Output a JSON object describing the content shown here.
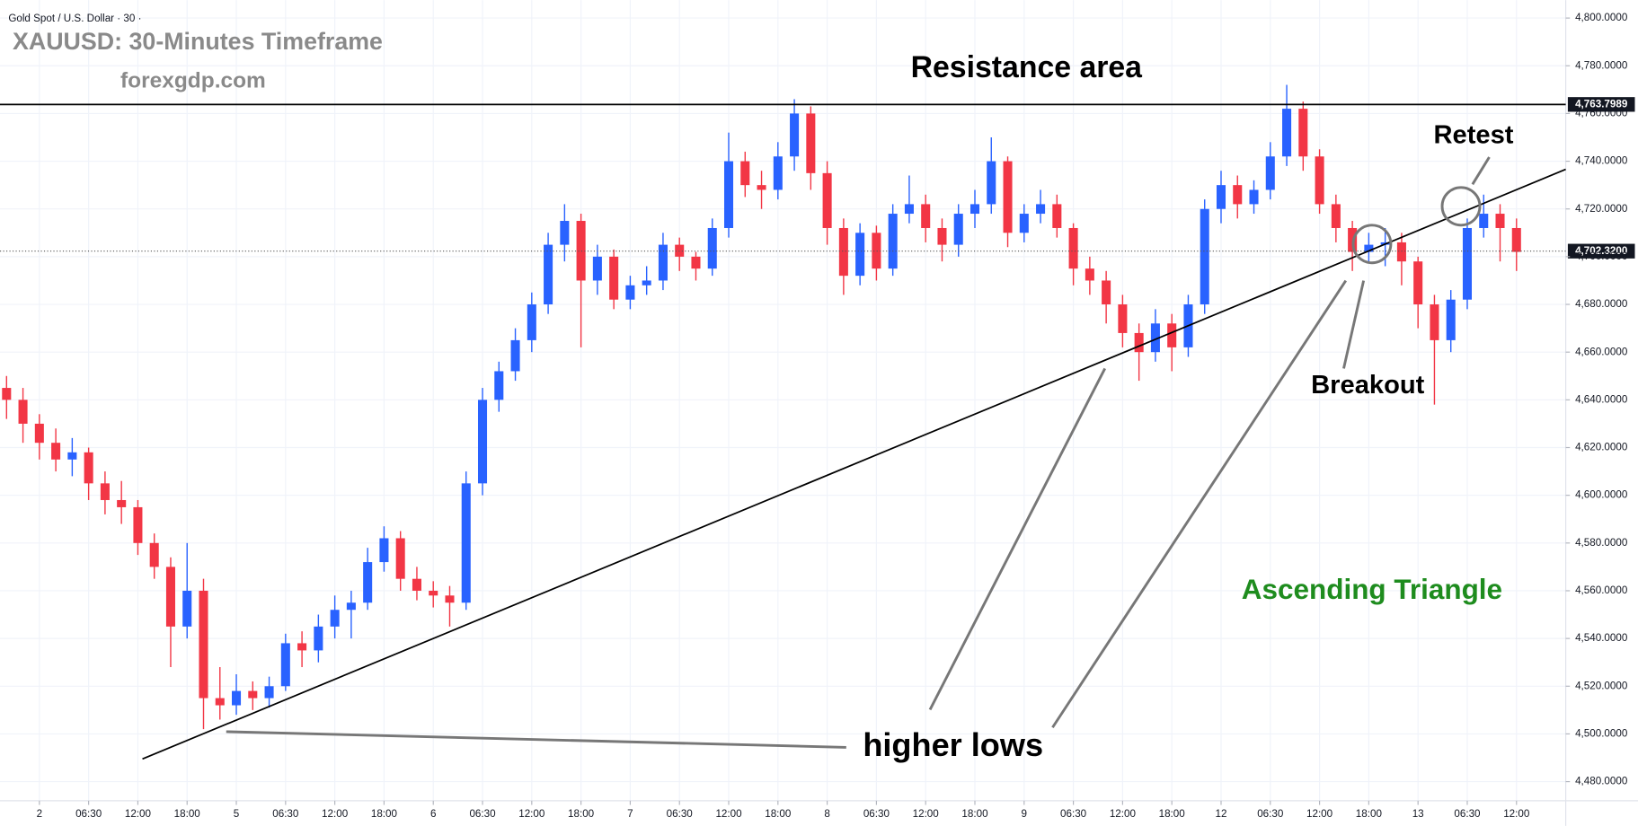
{
  "chart_data": {
    "type": "candlestick",
    "title": "Gold Spot / U.S. Dollar · 30 ·",
    "up_color": "#2962ff",
    "down_color": "#f23645",
    "grid": true,
    "open": [
      4645,
      4640,
      4630,
      4622,
      4615,
      4618,
      4605,
      4598,
      4595,
      4580,
      4570,
      4545,
      4560,
      4515,
      4512,
      4518,
      4515,
      4520,
      4538,
      4535,
      4545,
      4552,
      4555,
      4572,
      4582,
      4565,
      4560,
      4558,
      4555,
      4605,
      4640,
      4652,
      4665,
      4680,
      4705,
      4715,
      4690,
      4700,
      4682,
      4688,
      4690,
      4705,
      4700,
      4695,
      4712,
      4740,
      4730,
      4728,
      4742,
      4760,
      4735,
      4712,
      4692,
      4710,
      4695,
      4718,
      4722,
      4712,
      4705,
      4718,
      4722,
      4740,
      4710,
      4718,
      4722,
      4712,
      4695,
      4690,
      4680,
      4668,
      4660,
      4672,
      4662,
      4680,
      4720,
      4730,
      4722,
      4728,
      4742,
      4762,
      4742,
      4722,
      4712,
      4702,
      4705,
      4706,
      4698,
      4680,
      4665,
      4682,
      4712,
      4718,
      4712
    ],
    "high": [
      4650,
      4645,
      4634,
      4628,
      4624,
      4620,
      4610,
      4606,
      4598,
      4584,
      4574,
      4580,
      4565,
      4528,
      4525,
      4522,
      4524,
      4542,
      4543,
      4550,
      4558,
      4560,
      4578,
      4587,
      4585,
      4570,
      4564,
      4562,
      4610,
      4645,
      4656,
      4670,
      4685,
      4710,
      4722,
      4718,
      4705,
      4703,
      4692,
      4696,
      4710,
      4708,
      4702,
      4716,
      4752,
      4744,
      4736,
      4748,
      4766,
      4763,
      4740,
      4716,
      4714,
      4713,
      4722,
      4734,
      4726,
      4716,
      4722,
      4728,
      4750,
      4742,
      4722,
      4728,
      4726,
      4714,
      4700,
      4694,
      4684,
      4672,
      4678,
      4676,
      4684,
      4724,
      4736,
      4734,
      4732,
      4748,
      4772,
      4765,
      4745,
      4726,
      4715,
      4710,
      4712,
      4710,
      4700,
      4684,
      4686,
      4716,
      4726,
      4722,
      4716
    ],
    "low": [
      4632,
      4622,
      4615,
      4610,
      4608,
      4598,
      4592,
      4588,
      4575,
      4565,
      4528,
      4540,
      4502,
      4506,
      4508,
      4510,
      4511,
      4518,
      4528,
      4530,
      4540,
      4540,
      4552,
      4568,
      4560,
      4556,
      4553,
      4545,
      4552,
      4600,
      4635,
      4648,
      4660,
      4676,
      4698,
      4662,
      4684,
      4678,
      4678,
      4684,
      4686,
      4694,
      4690,
      4692,
      4708,
      4725,
      4720,
      4724,
      4736,
      4728,
      4705,
      4684,
      4688,
      4690,
      4692,
      4714,
      4706,
      4698,
      4700,
      4712,
      4718,
      4704,
      4706,
      4714,
      4708,
      4688,
      4684,
      4672,
      4662,
      4648,
      4656,
      4652,
      4658,
      4676,
      4714,
      4716,
      4718,
      4724,
      4738,
      4736,
      4718,
      4706,
      4694,
      4698,
      4696,
      4688,
      4670,
      4638,
      4660,
      4678,
      4708,
      4698,
      4694
    ],
    "close": [
      4640,
      4630,
      4622,
      4615,
      4618,
      4605,
      4598,
      4595,
      4580,
      4570,
      4545,
      4560,
      4515,
      4512,
      4518,
      4515,
      4520,
      4538,
      4535,
      4545,
      4552,
      4555,
      4572,
      4582,
      4565,
      4560,
      4558,
      4555,
      4605,
      4640,
      4652,
      4665,
      4680,
      4705,
      4715,
      4690,
      4700,
      4682,
      4688,
      4690,
      4705,
      4700,
      4695,
      4712,
      4740,
      4730,
      4728,
      4742,
      4760,
      4735,
      4712,
      4692,
      4710,
      4695,
      4718,
      4722,
      4712,
      4705,
      4718,
      4722,
      4740,
      4710,
      4718,
      4722,
      4712,
      4695,
      4690,
      4680,
      4668,
      4660,
      4672,
      4662,
      4680,
      4720,
      4730,
      4722,
      4728,
      4742,
      4762,
      4742,
      4722,
      4712,
      4702,
      4705,
      4706,
      4698,
      4680,
      4665,
      4682,
      4712,
      4718,
      4712,
      4702
    ],
    "xlim": [
      -0.4,
      95
    ],
    "xticks": [
      {
        "value": 2,
        "label": "2"
      },
      {
        "value": 5,
        "label": "06:30"
      },
      {
        "value": 8,
        "label": "12:00"
      },
      {
        "value": 11,
        "label": "18:00"
      },
      {
        "value": 14,
        "label": "5"
      },
      {
        "value": 17,
        "label": "06:30"
      },
      {
        "value": 20,
        "label": "12:00"
      },
      {
        "value": 23,
        "label": "18:00"
      },
      {
        "value": 26,
        "label": "6"
      },
      {
        "value": 29,
        "label": "06:30"
      },
      {
        "value": 32,
        "label": "12:00"
      },
      {
        "value": 35,
        "label": "18:00"
      },
      {
        "value": 38,
        "label": "7"
      },
      {
        "value": 41,
        "label": "06:30"
      },
      {
        "value": 44,
        "label": "12:00"
      },
      {
        "value": 47,
        "label": "18:00"
      },
      {
        "value": 50,
        "label": "8"
      },
      {
        "value": 53,
        "label": "06:30"
      },
      {
        "value": 56,
        "label": "12:00"
      },
      {
        "value": 59,
        "label": "18:00"
      },
      {
        "value": 62,
        "label": "9"
      },
      {
        "value": 65,
        "label": "06:30"
      },
      {
        "value": 68,
        "label": "12:00"
      },
      {
        "value": 71,
        "label": "18:00"
      },
      {
        "value": 74,
        "label": "12"
      },
      {
        "value": 77,
        "label": "06:30"
      },
      {
        "value": 80,
        "label": "12:00"
      },
      {
        "value": 83,
        "label": "18:00"
      },
      {
        "value": 86,
        "label": "13"
      },
      {
        "value": 89,
        "label": "06:30"
      },
      {
        "value": 92,
        "label": "12:00"
      }
    ],
    "ylim": [
      4472,
      4807.5
    ],
    "yticks": [
      {
        "value": 4480,
        "label": "4,480.0000"
      },
      {
        "value": 4500,
        "label": "4,500.0000"
      },
      {
        "value": 4520,
        "label": "4,520.0000"
      },
      {
        "value": 4540,
        "label": "4,540.0000"
      },
      {
        "value": 4560,
        "label": "4,560.0000"
      },
      {
        "value": 4580,
        "label": "4,580.0000"
      },
      {
        "value": 4600,
        "label": "4,600.0000"
      },
      {
        "value": 4620,
        "label": "4,620.0000"
      },
      {
        "value": 4640,
        "label": "4,640.0000"
      },
      {
        "value": 4660,
        "label": "4,660.0000"
      },
      {
        "value": 4680,
        "label": "4,680.0000"
      },
      {
        "value": 4700,
        "label": "4,700.0000"
      },
      {
        "value": 4720,
        "label": "4,720.0000"
      },
      {
        "value": 4740,
        "label": "4,740.0000"
      },
      {
        "value": 4760,
        "label": "4,760.0000"
      },
      {
        "value": 4780,
        "label": "4,780.0000"
      },
      {
        "value": 4800,
        "label": "4,800.0000"
      }
    ],
    "resistance": {
      "value": 4763.7989,
      "label": "4,763.7989"
    },
    "last_price": {
      "value": 4702.32,
      "label": "4,702.3200"
    },
    "trend_line": {
      "x": [
        8.28,
        95
      ],
      "y": [
        4489.5,
        4736.6
      ]
    },
    "annotations": {
      "heading": "XAUUSD: 30-Minutes Timeframe",
      "source": "forexgdp.com",
      "resistance_area": "Resistance area",
      "retest": "Retest",
      "breakout": "Breakout",
      "pattern": "Ascending Triangle",
      "higher_lows": "higher lows"
    }
  }
}
